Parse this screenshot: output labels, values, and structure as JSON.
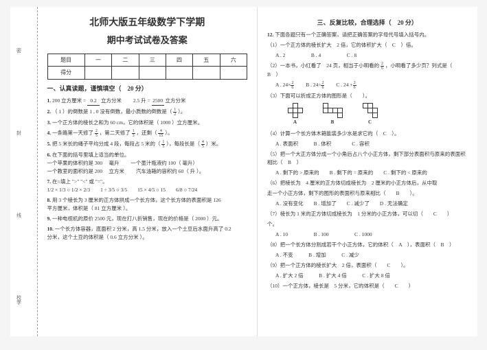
{
  "header": {
    "title1": "北师大版五年级数学下学期",
    "title2": "期中考试试卷及答案"
  },
  "binding": {
    "l1": "密",
    "l2": "封",
    "l3": "线",
    "l4": "校学"
  },
  "scoreTable": {
    "hdr": [
      "题目",
      "一",
      "二",
      "三",
      "四",
      "五",
      "六"
    ],
    "row": [
      "得分",
      "",
      "",
      "",
      "",
      "",
      ""
    ]
  },
  "section1": {
    "title": "一、认真读题，谨慎填空（　20 分）",
    "q1a": "200 立方厘米 =",
    "q1a_ans": "0.2",
    "q1a_end": "立方分米",
    "q1b": "2.5 升 =",
    "q1b_ans": "2500",
    "q1b_end": "立方分米",
    "q2": "（ 1 ）的倒数是",
    "q2_ans1": "1 , 0",
    "q2_mid": "没有倒数，最小质数的倒数是（",
    "q2_end": "）。",
    "q2_frac_n": "1",
    "q2_frac_d": "2",
    "q3": "一个正方体的棱长之和为 60 cm，它的体积是（",
    "q3_ans": "1000",
    "q3_end": "）立方厘米。",
    "q4": "一条路第一天修了",
    "q4_f1n": "2",
    "q4_f1d": "5",
    "q4_mid": "，第二天修了",
    "q4_f2n": "1",
    "q4_f2d": "3",
    "q4_m2": "，还剩（",
    "q4_f3n": "4",
    "q4_f3d": "15",
    "q4_end": "）。",
    "q5": "把 5 米长的绳子平均分成 4 段，每段占 5 米的（",
    "q5_f1n": "1",
    "q5_f1d": "5",
    "q5_mid": "），每段长是（",
    "q5_f2n": "4",
    "q5_f2d": "5",
    "q5_end": "）米。",
    "q6": "在下面的括号里填上适当的单位。",
    "q6a": "一个苹果的体积约是",
    "q6a_v": "300",
    "q6a_u": "毫升",
    "q6b": "一个墨汁瓶液约",
    "q6b_v": "100",
    "q6b_u": "毫升",
    "q6c": "一个教室的面积约是",
    "q6c_v": "200",
    "q6c_u": "立方米",
    "q6d": "汽车油箱的容积约 60（",
    "q6d_u": "升",
    "q6d_end": "）。",
    "q7": "在○填上 \">\" \"<\" 或 \"=\"。",
    "q7_line": "1/2 × 1/3 ○ 1/2 × 2/3　　1 ÷ 3/5 ○ 3/5　　15 × 4/5 ○ 15　　6/8 ○ 7/24",
    "q8": "用 3 个棱长为 3 厘米的正方体拼成一个长方体，这个长方体的表面积是",
    "q8_ans": "126",
    "q8_mid": "平方厘米，体积是（",
    "q8_ans2": "81 立方厘米",
    "q8_end": "）。",
    "q9": "一种电视机的原价 2500 元，现在打八折销售，现在的价格是（",
    "q9_ans": "2000",
    "q9_end": "）元。",
    "q10": "一个长方体容器，底面积 2 分米，高 1.5 分米，放入一个土豆后水面升高了 0.2",
    "q10_2": "分米，这个土豆的体积是（",
    "q10_ans": "0.6 立方分米",
    "q10_end": "）。"
  },
  "section3": {
    "title": "三、反复比较，合理选择（　20 分）",
    "q12": "下面各题只有一个正确答案，请把正确答案的字母代号填入括号内。",
    "q1": "（1）一个正方体的棱长扩大　2 倍，它的体积扩大（　C　）倍。",
    "q1_opts": "A . 2　　　　　B . 4　　　　　C . 8",
    "q2": "（2）一本书，小红看了　24 页，相当于小明看的",
    "q2_fn": "2",
    "q2_fd": "6",
    "q2_mid": "，小明看了多少页？列式是（　B　）",
    "q2_opts_a": "A . 24×",
    "q2_opts_b": "B . 24÷",
    "q2_opts_c": "C . 24 +",
    "q3": "（3）下面可以折成正方体的图形是（　　）。",
    "slabels": {
      "a": "A",
      "b": "B",
      "c": "C"
    },
    "q4": "（4）计算一个长方体木箱能装多少水是求它的（　C　）。",
    "q4_opts": "A . 表面积　　　B . 体积　　　　C . 容积",
    "q5": "（5）把一个大正方体分成一个小角后占八个小正方体，剩下部分表面积与原来的表面积相比（　B　）",
    "q5_opts": "A . 剩下的 > 原来的　　B . 剩下的 = 原来的　　C . 剩下的 < 原来的",
    "q6": "（6）把棱长为　4 厘米的正方体切成棱长为　2 厘米的小正方体后，从中取",
    "q6_2": "走一个小正方体，剩下的图形的表面积与原来相比（　　B　　）。",
    "q6_opts": "A . 没有变化　　B . 增加了　　C . 减少了　　D . 无法确定",
    "q7": "（7）棱长为 1 米的正方体切成棱长为　1 分米的小正方体，可以切（　　C　　）",
    "q7_2": "个。",
    "q7_opts": "A . 10　　　　　B . 100　　　　　C . 1000",
    "q8": "（8）把一个长方体分割成若干个小正方体，它的体积（　A　），表面积（　B　）",
    "q8_opts": "A . 不变　　　B . 增加　　　C . 减少",
    "q9": "（9）把一个正方体的棱长扩大　2 倍，表面积（　　C　　）。",
    "q9_opts": "A . 扩大 2 倍　　　B . 扩大 4 倍　　　C . 扩大 8 倍",
    "q10": "（10）一个正方体，棱长是　5 分米，它的体积是（　　C　　）"
  }
}
